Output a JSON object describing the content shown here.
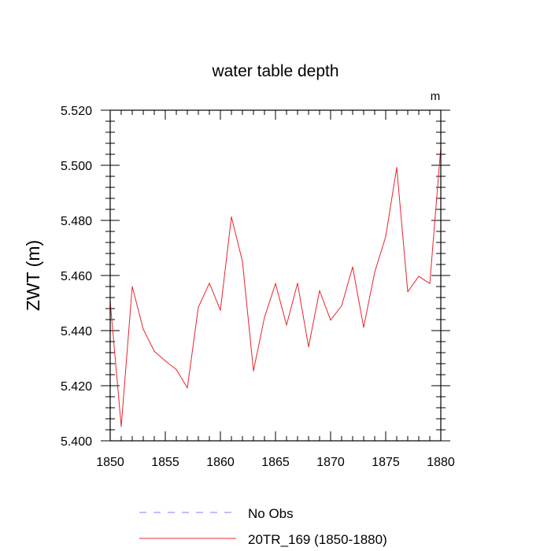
{
  "chart_data": {
    "type": "line",
    "title": "water table depth",
    "units_label": "m",
    "xlabel": "",
    "ylabel": "ZWT  (m)",
    "xlim": [
      1850,
      1880
    ],
    "ylim": [
      5.4,
      5.52
    ],
    "x_ticks": [
      1850,
      1855,
      1860,
      1865,
      1870,
      1875,
      1880
    ],
    "x_tick_labels": [
      "1850",
      "1855",
      "1860",
      "1865",
      "1870",
      "1875",
      "1880"
    ],
    "y_ticks": [
      5.4,
      5.42,
      5.44,
      5.46,
      5.48,
      5.5,
      5.52
    ],
    "y_tick_labels": [
      "5.400",
      "5.420",
      "5.440",
      "5.460",
      "5.480",
      "5.500",
      "5.520"
    ],
    "grid": false,
    "legend_position": "bottom",
    "legend": [
      {
        "label": "No Obs",
        "style": "dashed",
        "color": "#8080ff"
      },
      {
        "label": "20TR_169 (1850-1880)",
        "style": "solid",
        "color": "#e8242c"
      }
    ],
    "series": [
      {
        "name": "20TR_169 (1850-1880)",
        "color": "#e8242c",
        "x": [
          1850,
          1851,
          1852,
          1853,
          1854,
          1855,
          1856,
          1857,
          1858,
          1859,
          1860,
          1861,
          1862,
          1863,
          1864,
          1865,
          1866,
          1867,
          1868,
          1869,
          1870,
          1871,
          1872,
          1873,
          1874,
          1875,
          1876,
          1877,
          1878,
          1879,
          1880
        ],
        "values": [
          5.4505,
          5.4052,
          5.456,
          5.4405,
          5.4325,
          5.429,
          5.4259,
          5.4192,
          5.4485,
          5.4572,
          5.4474,
          5.4813,
          5.4651,
          5.4254,
          5.4448,
          5.4571,
          5.442,
          5.4572,
          5.4341,
          5.4545,
          5.4438,
          5.449,
          5.4631,
          5.4412,
          5.4612,
          5.4741,
          5.4992,
          5.4541,
          5.4597,
          5.4571,
          5.5065
        ]
      }
    ]
  }
}
